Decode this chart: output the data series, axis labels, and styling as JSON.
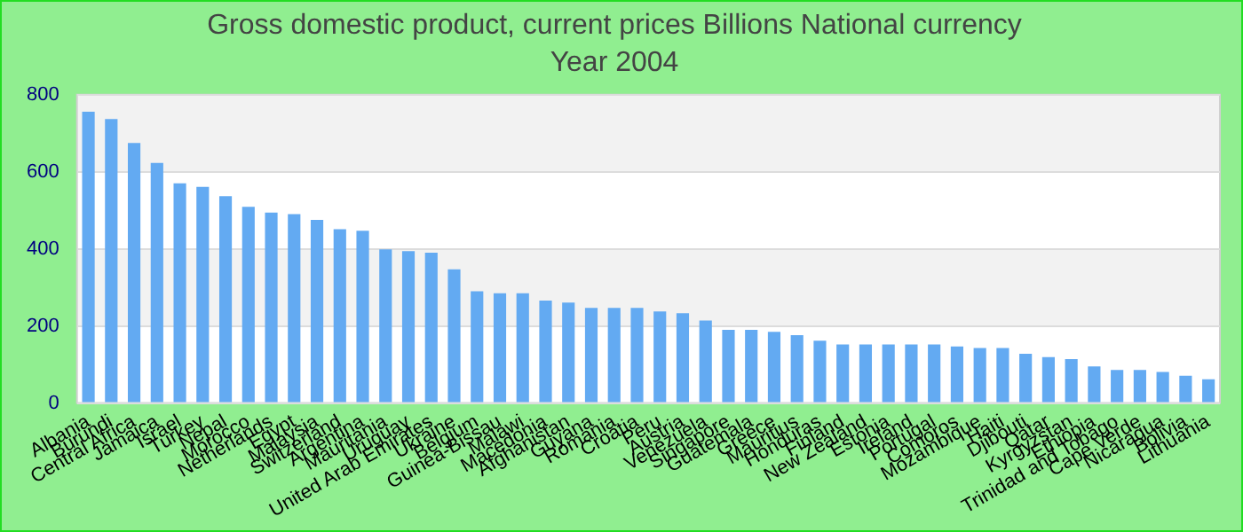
{
  "chart_data": {
    "type": "bar",
    "title": "Gross domestic product, current prices Billions National currency",
    "subtitle": "Year 2004",
    "categories": [
      "Albania",
      "Burundi",
      "Central Africa",
      "Jamaica",
      "Israel",
      "Turkey",
      "Nepal",
      "Morocco",
      "Netherlands",
      "Egypt",
      "Malaysia",
      "Switzerland",
      "Argentina",
      "Mauritania",
      "Uruguay",
      "United Arab Emirates",
      "Ukraine",
      "Belgium",
      "Guinea-Bissau",
      "Malawi",
      "Macedonia",
      "Afghanistan",
      "Guyana",
      "Romania",
      "Croatia",
      "Peru",
      "Austria",
      "Venezuela",
      "Singapore",
      "Guatemala",
      "Greece",
      "Mauritius",
      "Honduras",
      "Finland",
      "New Zealand",
      "Estonia",
      "Ireland",
      "Portugal",
      "Comoros",
      "Mozambique",
      "Haiti",
      "Djibouti",
      "Qatar",
      "Kyrgyzstan",
      "Ethiopia",
      "Trinidad and Tobago",
      "Cape Verde",
      "Nicaragua",
      "Bolivia",
      "Lithuania"
    ],
    "values": [
      756,
      737,
      675,
      623,
      570,
      561,
      537,
      509,
      494,
      490,
      475,
      451,
      447,
      399,
      394,
      390,
      347,
      290,
      285,
      285,
      266,
      261,
      247,
      247,
      247,
      238,
      233,
      214,
      190,
      190,
      185,
      176,
      162,
      152,
      152,
      152,
      152,
      152,
      147,
      143,
      143,
      128,
      119,
      114,
      95,
      86,
      86,
      81,
      71,
      62
    ],
    "color": "#63aaf2",
    "ylim": [
      0,
      800
    ],
    "yticks": [
      0,
      200,
      400,
      600,
      800
    ],
    "grid": true
  }
}
